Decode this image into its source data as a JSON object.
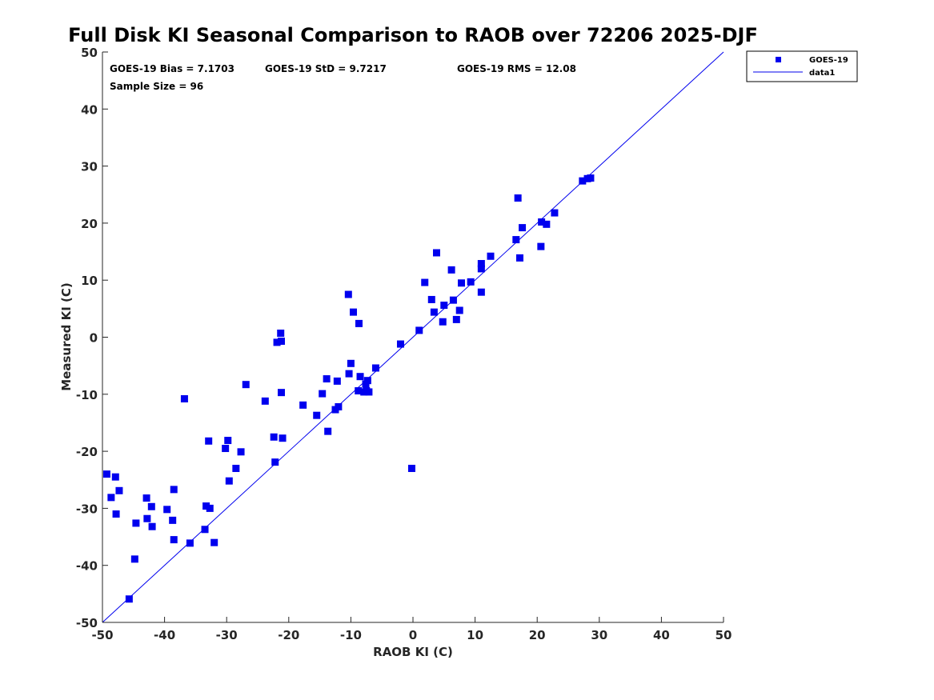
{
  "chart_data": {
    "type": "scatter",
    "title": "Full Disk KI Seasonal Comparison to RAOB over 72206 2025-DJF",
    "xlabel": "RAOB KI (C)",
    "ylabel": "Measured KI (C)",
    "xlim": [
      -50,
      50
    ],
    "ylim": [
      -50,
      50
    ],
    "xticks": [
      -50,
      -40,
      -30,
      -20,
      -10,
      0,
      10,
      20,
      30,
      40,
      50
    ],
    "yticks": [
      -50,
      -40,
      -30,
      -20,
      -10,
      0,
      10,
      20,
      30,
      40,
      50
    ],
    "xtick_labels": [
      "-50",
      "-40",
      "-30",
      "-20",
      "-10",
      "0",
      "10",
      "20",
      "30",
      "40",
      "50"
    ],
    "ytick_labels": [
      "-50",
      "-40",
      "-30",
      "-20",
      "-10",
      "0",
      "10",
      "20",
      "30",
      "40",
      "50"
    ],
    "grid": false,
    "legend_position": "top-right (outside)",
    "stats": {
      "bias": "GOES-19 Bias = 7.1703",
      "std": "GOES-19 StD = 9.7217",
      "rms": "GOES-19 RMS = 12.08",
      "sample": "Sample Size = 96"
    },
    "series": [
      {
        "name": "GOES-19",
        "kind": "scatter",
        "marker": "square",
        "color": "#0000ee",
        "points": [
          [
            -49.3,
            -24.0
          ],
          [
            -48.6,
            -28.1
          ],
          [
            -47.9,
            -24.5
          ],
          [
            -47.8,
            -31.0
          ],
          [
            -47.3,
            -26.9
          ],
          [
            -45.7,
            -45.9
          ],
          [
            -44.8,
            -38.9
          ],
          [
            -44.6,
            -32.6
          ],
          [
            -42.9,
            -28.2
          ],
          [
            -42.8,
            -31.8
          ],
          [
            -42.1,
            -29.7
          ],
          [
            -42.0,
            -33.2
          ],
          [
            -39.6,
            -30.2
          ],
          [
            -38.7,
            -32.1
          ],
          [
            -38.5,
            -26.7
          ],
          [
            -38.5,
            -35.5
          ],
          [
            -36.8,
            -10.8
          ],
          [
            -35.9,
            -36.1
          ],
          [
            -33.5,
            -33.7
          ],
          [
            -33.3,
            -29.6
          ],
          [
            -32.9,
            -18.2
          ],
          [
            -32.7,
            -30.0
          ],
          [
            -32.0,
            -36.0
          ],
          [
            -30.2,
            -19.5
          ],
          [
            -29.8,
            -18.1
          ],
          [
            -29.6,
            -25.2
          ],
          [
            -28.5,
            -23.0
          ],
          [
            -27.7,
            -20.1
          ],
          [
            -26.9,
            -8.3
          ],
          [
            -23.8,
            -11.2
          ],
          [
            -22.4,
            -17.5
          ],
          [
            -22.2,
            -21.9
          ],
          [
            -21.9,
            -0.9
          ],
          [
            -21.3,
            0.7
          ],
          [
            -21.2,
            -0.7
          ],
          [
            -21.2,
            -9.7
          ],
          [
            -21.0,
            -17.7
          ],
          [
            -17.7,
            -11.9
          ],
          [
            -15.5,
            -13.7
          ],
          [
            -14.6,
            -9.9
          ],
          [
            -13.9,
            -7.3
          ],
          [
            -13.7,
            -16.5
          ],
          [
            -12.5,
            -12.7
          ],
          [
            -12.2,
            -7.7
          ],
          [
            -12.0,
            -12.2
          ],
          [
            -10.4,
            7.5
          ],
          [
            -10.3,
            -6.4
          ],
          [
            -10.0,
            -4.6
          ],
          [
            -9.6,
            4.4
          ],
          [
            -8.8,
            -9.4
          ],
          [
            -8.7,
            2.4
          ],
          [
            -8.5,
            -6.9
          ],
          [
            -7.9,
            -9.6
          ],
          [
            -7.6,
            -8.2
          ],
          [
            -7.5,
            -9.4
          ],
          [
            -7.3,
            -7.6
          ],
          [
            -7.1,
            -9.6
          ],
          [
            -6.0,
            -5.4
          ],
          [
            -2.0,
            -1.2
          ],
          [
            -0.2,
            -23.0
          ],
          [
            1.0,
            1.2
          ],
          [
            1.9,
            9.6
          ],
          [
            3.0,
            6.6
          ],
          [
            3.4,
            4.4
          ],
          [
            3.8,
            14.8
          ],
          [
            4.8,
            2.7
          ],
          [
            5.0,
            5.6
          ],
          [
            6.2,
            11.8
          ],
          [
            6.5,
            6.5
          ],
          [
            7.0,
            3.1
          ],
          [
            7.5,
            4.7
          ],
          [
            7.8,
            9.5
          ],
          [
            9.3,
            9.7
          ],
          [
            11.0,
            12.0
          ],
          [
            11.0,
            12.9
          ],
          [
            11.0,
            7.9
          ],
          [
            12.5,
            14.2
          ],
          [
            16.6,
            17.1
          ],
          [
            16.9,
            24.4
          ],
          [
            17.2,
            13.9
          ],
          [
            17.6,
            19.2
          ],
          [
            20.6,
            15.9
          ],
          [
            20.7,
            20.2
          ],
          [
            21.5,
            19.8
          ],
          [
            22.8,
            21.8
          ],
          [
            27.3,
            27.4
          ],
          [
            28.1,
            27.8
          ],
          [
            28.6,
            27.9
          ]
        ]
      },
      {
        "name": "data1",
        "kind": "line",
        "color": "#0000ee",
        "points": [
          [
            -50,
            -50
          ],
          [
            50,
            50
          ]
        ]
      }
    ]
  }
}
